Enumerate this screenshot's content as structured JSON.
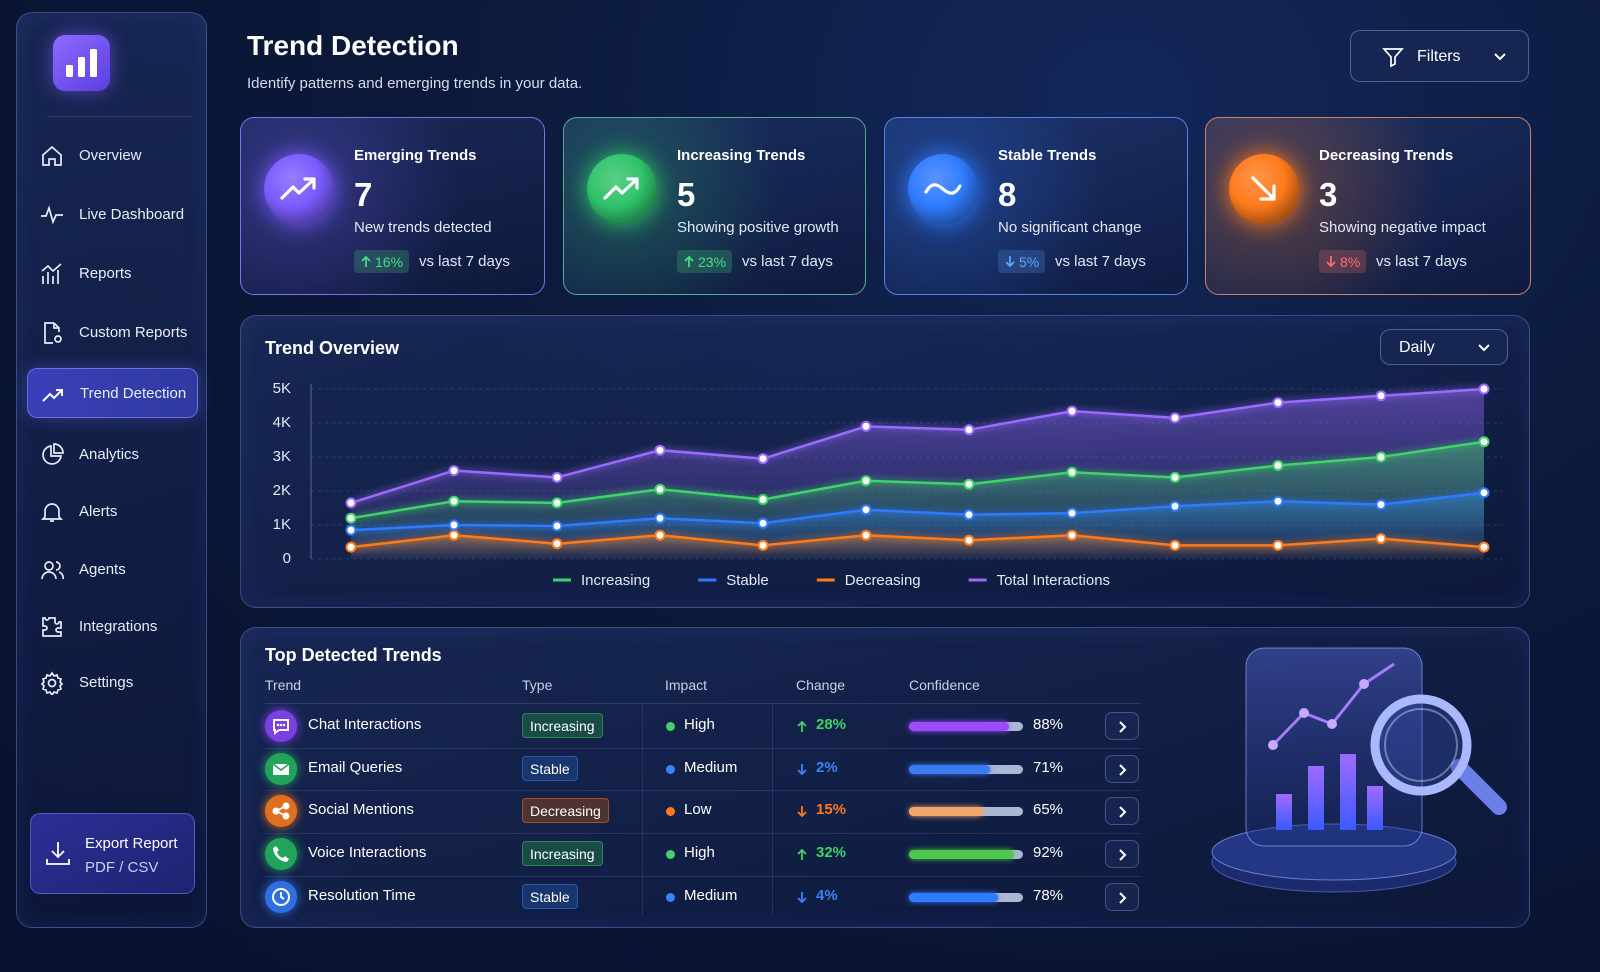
{
  "sidebar": {
    "nav": [
      {
        "label": "Overview"
      },
      {
        "label": "Live Dashboard"
      },
      {
        "label": "Reports"
      },
      {
        "label": "Custom Reports"
      },
      {
        "label": "Trend Detection",
        "active": true
      },
      {
        "label": "Analytics"
      },
      {
        "label": "Alerts"
      },
      {
        "label": "Agents"
      },
      {
        "label": "Integrations"
      },
      {
        "label": "Settings"
      }
    ],
    "export": {
      "title": "Export Report",
      "subtitle": "PDF / CSV"
    }
  },
  "header": {
    "title": "Trend Detection",
    "subtitle": "Identify patterns and emerging trends in your data.",
    "filters": "Filters"
  },
  "cards": [
    {
      "title": "Emerging Trends",
      "value": 7,
      "description": "New trends detected",
      "change": "16%",
      "direction": "up",
      "comparison": "vs last 7 days",
      "color": "#7b5cff",
      "change_color": "#4ade80"
    },
    {
      "title": "Increasing Trends",
      "value": 5,
      "description": "Showing positive growth",
      "change": "23%",
      "direction": "up",
      "comparison": "vs last 7 days",
      "color": "#2fc36a",
      "change_color": "#4ade80"
    },
    {
      "title": "Stable Trends",
      "value": 8,
      "description": "No significant change",
      "change": "5%",
      "direction": "down",
      "comparison": "vs last 7 days",
      "color": "#2f7bff",
      "change_color": "#60a5fa"
    },
    {
      "title": "Decreasing Trends",
      "value": 3,
      "description": "Showing negative impact",
      "change": "8%",
      "direction": "down",
      "comparison": "vs last 7 days",
      "color": "#ff7a1a",
      "change_color": "#f87171"
    }
  ],
  "chart": {
    "type": "line",
    "title": "Trend Overview",
    "period": "Daily",
    "categories": [
      null,
      null,
      null,
      null,
      null,
      null,
      null,
      null,
      null,
      null,
      null,
      null
    ],
    "ylim": [
      0,
      5000
    ],
    "yticks": [
      0,
      {
        "value": 1000,
        "label": "1K"
      },
      {
        "value": 2000,
        "label": "2K"
      },
      {
        "value": 3000,
        "label": "3K"
      },
      {
        "value": 4000,
        "label": "4K"
      },
      {
        "value": 5000,
        "label": "5K"
      }
    ],
    "grid": true,
    "series": [
      {
        "name": "Increasing",
        "color": "#3fd36a",
        "values": [
          1200,
          1700,
          1650,
          2050,
          1750,
          2300,
          2200,
          2550,
          2400,
          2750,
          3000,
          3450
        ]
      },
      {
        "name": "Stable",
        "color": "#2f7bff",
        "values": [
          850,
          1000,
          970,
          1200,
          1050,
          1450,
          1300,
          1350,
          1550,
          1700,
          1600,
          1950
        ]
      },
      {
        "name": "Decreasing",
        "color": "#ff7a1a",
        "values": [
          350,
          700,
          450,
          700,
          400,
          700,
          550,
          700,
          400,
          400,
          600,
          350
        ]
      },
      {
        "name": "Total Interactions",
        "color": "#9b6bff",
        "values": [
          1650,
          2600,
          2400,
          3200,
          2950,
          3900,
          3800,
          4350,
          4150,
          4600,
          4800,
          5000
        ]
      }
    ]
  },
  "table": {
    "title": "Top Detected Trends",
    "columns": [
      "Trend",
      "Type",
      "Impact",
      "Change",
      "Confidence"
    ],
    "rows": [
      {
        "trend": "Chat Interactions",
        "type": "Increasing",
        "impact": "High",
        "change": "28%",
        "direction": "up",
        "confidence": {
          "value": 88,
          "label": "88%"
        },
        "icon_color": "#7b3fe4",
        "color": "#3fd36a",
        "bar_color": "#9b4bff"
      },
      {
        "trend": "Email Queries",
        "type": "Stable",
        "impact": "Medium",
        "change": "2%",
        "direction": "down",
        "confidence": {
          "value": 71,
          "label": "71%"
        },
        "icon_color": "#22a35a",
        "color": "#3b82f6",
        "bar_color": "#3b7bf0"
      },
      {
        "trend": "Social Mentions",
        "type": "Decreasing",
        "impact": "Low",
        "change": "15%",
        "direction": "down",
        "confidence": {
          "value": 65,
          "label": "65%"
        },
        "icon_color": "#e0701f",
        "color": "#ff7a1a",
        "bar_color": "#f4a56a"
      },
      {
        "trend": "Voice Interactions",
        "type": "Increasing",
        "impact": "High",
        "change": "32%",
        "direction": "up",
        "confidence": {
          "value": 92,
          "label": "92%"
        },
        "icon_color": "#22a35a",
        "color": "#3fd36a",
        "bar_color": "#4cc84c"
      },
      {
        "trend": "Resolution Time",
        "type": "Stable",
        "impact": "Medium",
        "change": "4%",
        "direction": "down",
        "confidence": {
          "value": 78,
          "label": "78%"
        },
        "icon_color": "#2f6fe0",
        "color": "#3b82f6",
        "bar_color": "#2f7bff"
      }
    ]
  }
}
